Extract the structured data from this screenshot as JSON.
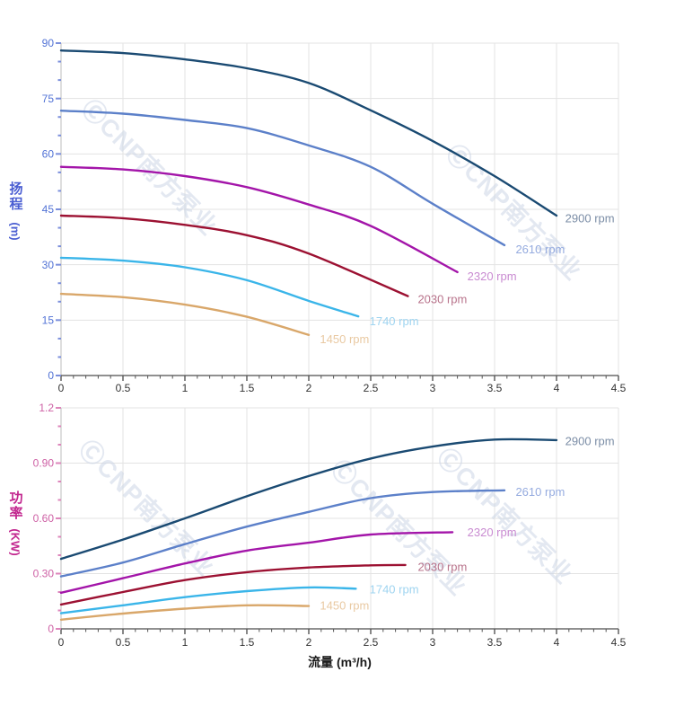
{
  "watermark": {
    "text": "ⒸCNP南方泵业"
  },
  "styles": {
    "background": "#ffffff",
    "grid": "#e3e3e3",
    "axis_line": "#6b6b6b",
    "left_axis_line": "#c9c9c9",
    "watermark_color": "#ccd5e6"
  },
  "chart_data": [
    {
      "type": "line",
      "name": "head-curve-chart",
      "x_axis": {
        "min": 0,
        "max": 4.5,
        "step": 0.5,
        "minor_step": 0.1,
        "tick_labels": [
          "0",
          "0.5",
          "1",
          "1.5",
          "2",
          "2.5",
          "3",
          "3.5",
          "4",
          "4.5"
        ],
        "tick_color": "#555555",
        "label_color": "#333333"
      },
      "y_axis": {
        "title": "扬程",
        "unit": "(m)",
        "title_color": "#4a5ed2",
        "min": 0,
        "max": 90,
        "step": 15,
        "minor_step": 5,
        "tick_labels": [
          "0",
          "15",
          "30",
          "45",
          "60",
          "75",
          "90"
        ],
        "tick_color": "#7b8fdc",
        "label_color": "#5273d6"
      },
      "series": [
        {
          "label": "2900 rpm",
          "color": "#1a4a72",
          "label_color": "#7b8da6",
          "label_at": [
            4.07,
            42.6
          ],
          "points": [
            [
              0,
              88
            ],
            [
              0.5,
              87.3
            ],
            [
              1,
              85.6
            ],
            [
              1.5,
              83.2
            ],
            [
              2,
              79.2
            ],
            [
              2.5,
              71.8
            ],
            [
              3,
              63.5
            ],
            [
              3.5,
              54
            ],
            [
              4,
              43.3
            ]
          ]
        },
        {
          "label": "2610 rpm",
          "color": "#5c80c9",
          "label_color": "#95abdf",
          "label_at": [
            3.67,
            34.2
          ],
          "points": [
            [
              0,
              71.7
            ],
            [
              0.5,
              70.9
            ],
            [
              1,
              69.2
            ],
            [
              1.5,
              67
            ],
            [
              2,
              62.3
            ],
            [
              2.5,
              56.5
            ],
            [
              3,
              46.5
            ],
            [
              3.58,
              35.3
            ]
          ]
        },
        {
          "label": "2320 rpm",
          "color": "#a315a9",
          "label_color": "#c98bd1",
          "label_at": [
            3.28,
            26.9
          ],
          "points": [
            [
              0,
              56.5
            ],
            [
              0.5,
              55.8
            ],
            [
              1,
              54
            ],
            [
              1.5,
              51
            ],
            [
              2,
              46.3
            ],
            [
              2.5,
              40.5
            ],
            [
              3.2,
              28
            ]
          ]
        },
        {
          "label": "2030 rpm",
          "color": "#9c1132",
          "label_color": "#b8738b",
          "label_at": [
            2.88,
            20.7
          ],
          "points": [
            [
              0,
              43.3
            ],
            [
              0.5,
              42.6
            ],
            [
              1,
              40.8
            ],
            [
              1.5,
              38
            ],
            [
              2,
              33
            ],
            [
              2.8,
              21.5
            ]
          ]
        },
        {
          "label": "1740 rpm",
          "color": "#3ab5e9",
          "label_color": "#9fd4f0",
          "label_at": [
            2.49,
            14.7
          ],
          "points": [
            [
              0,
              31.9
            ],
            [
              0.5,
              31.1
            ],
            [
              1,
              29.3
            ],
            [
              1.5,
              25.8
            ],
            [
              2,
              20.2
            ],
            [
              2.4,
              16
            ]
          ]
        },
        {
          "label": "1450 rpm",
          "color": "#d9a76a",
          "label_color": "#e9c9a2",
          "label_at": [
            2.09,
            9.9
          ],
          "points": [
            [
              0,
              22.1
            ],
            [
              0.5,
              21.2
            ],
            [
              1,
              19.2
            ],
            [
              1.5,
              15.9
            ],
            [
              2,
              11
            ]
          ]
        }
      ]
    },
    {
      "type": "line",
      "name": "power-curve-chart",
      "x_axis": {
        "min": 0,
        "max": 4.5,
        "step": 0.5,
        "minor_step": 0.1,
        "title": "流量 (m³/h)",
        "title_color": "#1a1a1a",
        "tick_labels": [
          "0",
          "0.5",
          "1",
          "1.5",
          "2",
          "2.5",
          "3",
          "3.5",
          "4",
          "4.5"
        ],
        "tick_color": "#555555",
        "label_color": "#333333"
      },
      "y_axis": {
        "title": "功率",
        "unit": "(KW)",
        "title_color": "#c2278f",
        "min": 0,
        "max": 1.2,
        "step": 0.3,
        "minor_step": 0.1,
        "tick_labels": [
          "0",
          "0.30",
          "0.60",
          "0.90",
          "1.2"
        ],
        "tick_color": "#dd85bb",
        "label_color": "#ce61a5"
      },
      "series": [
        {
          "label": "2900 rpm",
          "color": "#1a4a72",
          "label_color": "#7b8da6",
          "label_at": [
            4.07,
            1.02
          ],
          "points": [
            [
              0,
              0.38
            ],
            [
              0.5,
              0.485
            ],
            [
              1,
              0.6
            ],
            [
              1.5,
              0.72
            ],
            [
              2,
              0.83
            ],
            [
              2.5,
              0.925
            ],
            [
              3,
              0.99
            ],
            [
              3.5,
              1.028
            ],
            [
              4,
              1.025
            ]
          ]
        },
        {
          "label": "2610 rpm",
          "color": "#5c80c9",
          "label_color": "#95abdf",
          "label_at": [
            3.67,
            0.744
          ],
          "points": [
            [
              0,
              0.285
            ],
            [
              0.5,
              0.36
            ],
            [
              1,
              0.46
            ],
            [
              1.5,
              0.555
            ],
            [
              2,
              0.635
            ],
            [
              2.5,
              0.71
            ],
            [
              3,
              0.743
            ],
            [
              3.58,
              0.752
            ]
          ]
        },
        {
          "label": "2320 rpm",
          "color": "#a315a9",
          "label_color": "#c98bd1",
          "label_at": [
            3.28,
            0.524
          ],
          "points": [
            [
              0,
              0.196
            ],
            [
              0.5,
              0.275
            ],
            [
              1,
              0.355
            ],
            [
              1.5,
              0.425
            ],
            [
              2,
              0.468
            ],
            [
              2.5,
              0.512
            ],
            [
              3.16,
              0.525
            ]
          ]
        },
        {
          "label": "2030 rpm",
          "color": "#9c1132",
          "label_color": "#b8738b",
          "label_at": [
            2.88,
            0.337
          ],
          "points": [
            [
              0,
              0.132
            ],
            [
              0.5,
              0.2
            ],
            [
              1,
              0.265
            ],
            [
              1.5,
              0.308
            ],
            [
              2,
              0.333
            ],
            [
              2.5,
              0.345
            ],
            [
              2.78,
              0.347
            ]
          ]
        },
        {
          "label": "1740 rpm",
          "color": "#3ab5e9",
          "label_color": "#9fd4f0",
          "label_at": [
            2.49,
            0.215
          ],
          "points": [
            [
              0,
              0.085
            ],
            [
              0.5,
              0.128
            ],
            [
              1,
              0.172
            ],
            [
              1.5,
              0.205
            ],
            [
              2,
              0.225
            ],
            [
              2.38,
              0.218
            ]
          ]
        },
        {
          "label": "1450 rpm",
          "color": "#d9a76a",
          "label_color": "#e9c9a2",
          "label_at": [
            2.09,
            0.127
          ],
          "points": [
            [
              0,
              0.05
            ],
            [
              0.5,
              0.083
            ],
            [
              1,
              0.11
            ],
            [
              1.5,
              0.128
            ],
            [
              2,
              0.124
            ]
          ]
        }
      ]
    }
  ]
}
